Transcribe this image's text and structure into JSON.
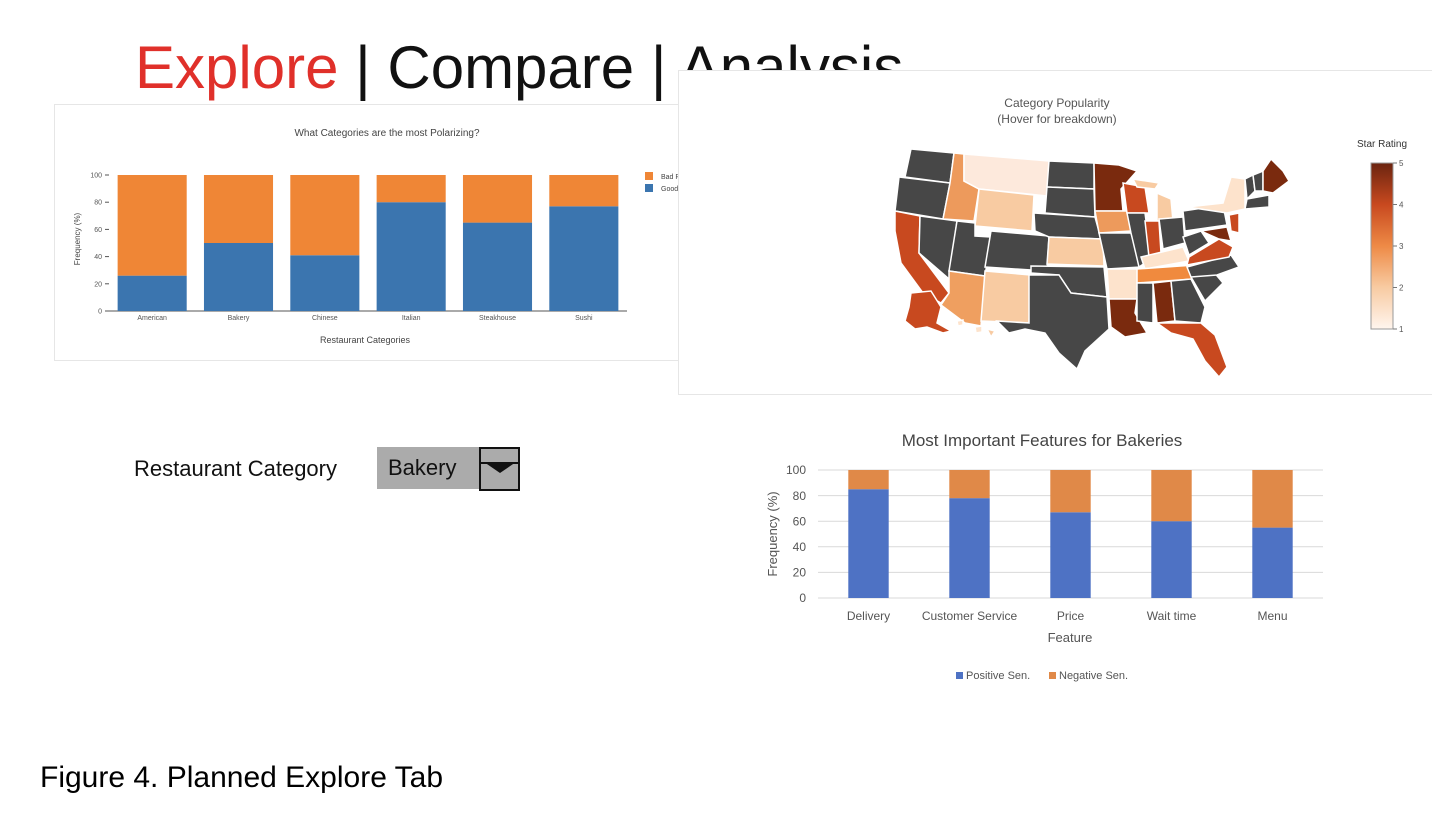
{
  "header": {
    "title_explore": "Explore",
    "title_sep1": " | ",
    "title_compare": "Compare",
    "title_sep2": " | ",
    "title_analysis": "Analysis"
  },
  "colors": {
    "accent_red": "#e0302a",
    "bad_review": "#ef8636",
    "good_review": "#3b75af",
    "positive_sen": "#4e72c4",
    "negative_sen": "#e08948",
    "map_dark": "#474747"
  },
  "chart_data": [
    {
      "type": "bar",
      "stacked": true,
      "title": "What Categories are the most Polarizing?",
      "xlabel": "Restaurant Categories",
      "ylabel": "Frequency (%)",
      "ylim": [
        0,
        100
      ],
      "yticks": [
        "0",
        "20",
        "40",
        "60",
        "80",
        "100"
      ],
      "categories": [
        "American",
        "Bakery",
        "Chinese",
        "Italian",
        "Steakhouse",
        "Sushi"
      ],
      "series": [
        {
          "name": "Good Review",
          "values": [
            26,
            50,
            41,
            80,
            65,
            77
          ]
        },
        {
          "name": "Bad Review",
          "values": [
            74,
            50,
            59,
            20,
            35,
            23
          ]
        }
      ],
      "legend_position": "top-right"
    },
    {
      "type": "map",
      "title": "Category Popularity",
      "subtitle": "(Hover for breakdown)",
      "colorbar_title": "Star Rating",
      "colorbar_ticks": [
        "5",
        "4",
        "3",
        "2",
        "1"
      ],
      "colorbar_range": [
        1,
        5
      ]
    },
    {
      "type": "bar",
      "stacked": true,
      "title": "Most Important Features for Bakeries",
      "xlabel": "Feature",
      "ylabel": "Frequency (%)",
      "ylim": [
        0,
        100
      ],
      "yticks": [
        "0",
        "20",
        "40",
        "60",
        "80",
        "100"
      ],
      "categories": [
        "Delivery",
        "Customer Service",
        "Price",
        "Wait time",
        "Menu"
      ],
      "series": [
        {
          "name": "Positive Sen.",
          "values": [
            85,
            78,
            67,
            60,
            55
          ]
        },
        {
          "name": "Negative Sen.",
          "values": [
            15,
            22,
            33,
            40,
            45
          ]
        }
      ],
      "legend_position": "bottom"
    }
  ],
  "selector": {
    "label": "Restaurant Category",
    "value": "Bakery"
  },
  "caption": "Figure 4. Planned Explore Tab"
}
